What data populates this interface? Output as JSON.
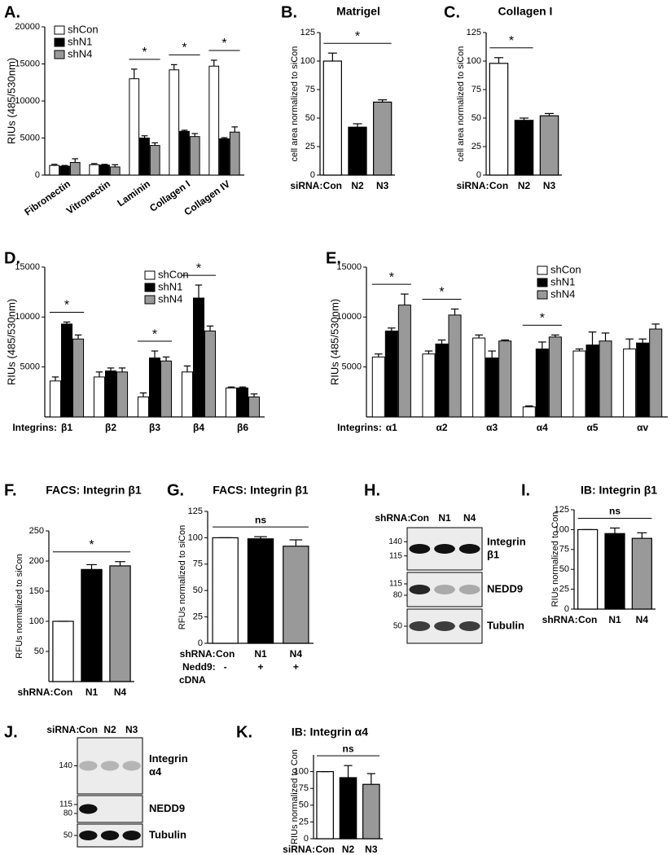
{
  "chart_data": [
    {
      "type": "bar",
      "panel": "A.",
      "ylabel": "RIUs (485/530nm)",
      "categories": [
        "Fibronectin",
        "Vitronectin",
        "Laminin",
        "Collagen I",
        "Collagen IV"
      ],
      "series": [
        {
          "name": "shCon",
          "color": "#ffffff",
          "values": [
            1300,
            1400,
            13000,
            14200,
            14700
          ],
          "errors": [
            150,
            150,
            1300,
            700,
            800
          ]
        },
        {
          "name": "shN1",
          "color": "#000000",
          "values": [
            1200,
            1350,
            5000,
            5900,
            4900
          ],
          "errors": [
            100,
            100,
            300,
            150,
            150
          ]
        },
        {
          "name": "shN4",
          "color": "#999999",
          "values": [
            1700,
            1100,
            4000,
            5200,
            5800
          ],
          "errors": [
            500,
            300,
            350,
            400,
            700
          ]
        }
      ],
      "ylim": [
        0,
        20000
      ],
      "yticks": [
        0,
        5000,
        10000,
        15000,
        20000
      ],
      "legend": "top-left",
      "annotations": [
        {
          "text": "*",
          "from": 2,
          "to": 2
        },
        {
          "text": "*",
          "from": 3,
          "to": 3
        },
        {
          "text": "*",
          "from": 4,
          "to": 4
        }
      ]
    },
    {
      "type": "bar",
      "panel": "B.",
      "title": "Matrigel",
      "ylabel": "cell area normalized to siCon",
      "x_prefix": "siRNA:",
      "categories": [
        "Con",
        "N2",
        "N3"
      ],
      "values": [
        100,
        42,
        64
      ],
      "errors": [
        7,
        3,
        2
      ],
      "colors": [
        "#ffffff",
        "#000000",
        "#999999"
      ],
      "ylim": [
        0,
        125
      ],
      "yticks": [
        0,
        25,
        50,
        75,
        100,
        125
      ],
      "annotations": [
        {
          "text": "*",
          "from": 0,
          "to": 2
        }
      ]
    },
    {
      "type": "bar",
      "panel": "C.",
      "title": "Collagen I",
      "ylabel": "cell area normalized to siCon",
      "x_prefix": "siRNA:",
      "categories": [
        "Con",
        "N2",
        "N3"
      ],
      "values": [
        98,
        48,
        52
      ],
      "errors": [
        5,
        2,
        2
      ],
      "colors": [
        "#ffffff",
        "#000000",
        "#999999"
      ],
      "ylim": [
        0,
        125
      ],
      "yticks": [
        0,
        25,
        50,
        75,
        100,
        125
      ],
      "annotations": [
        {
          "text": "*",
          "from": 0,
          "to": 1
        }
      ]
    },
    {
      "type": "bar",
      "panel": "D.",
      "ylabel": "RIUs (485/530nm)",
      "x_prefix": "Integrins:",
      "categories": [
        "β1",
        "β2",
        "β3",
        "β4",
        "β6"
      ],
      "series": [
        {
          "name": "shCon",
          "color": "#ffffff",
          "values": [
            3600,
            4000,
            2000,
            4500,
            2900
          ],
          "errors": [
            400,
            500,
            400,
            600,
            100
          ]
        },
        {
          "name": "shN1",
          "color": "#000000",
          "values": [
            9300,
            4600,
            5900,
            11900,
            2900
          ],
          "errors": [
            200,
            300,
            700,
            1300,
            100
          ]
        },
        {
          "name": "shN4",
          "color": "#999999",
          "values": [
            7800,
            4500,
            5600,
            8600,
            2000
          ],
          "errors": [
            400,
            400,
            400,
            500,
            300
          ]
        }
      ],
      "ylim": [
        0,
        15000
      ],
      "yticks": [
        5000,
        10000,
        15000
      ],
      "legend": "top-center",
      "annotations": [
        {
          "text": "*",
          "from": 0,
          "to": 0
        },
        {
          "text": "*",
          "from": 2,
          "to": 2
        },
        {
          "text": "*",
          "from": 3,
          "to": 3
        }
      ]
    },
    {
      "type": "bar",
      "panel": "E.",
      "ylabel": "RIUs (485/530nm)",
      "x_prefix": "Integrins:",
      "categories": [
        "α1",
        "α2",
        "α3",
        "α4",
        "α5",
        "αv"
      ],
      "series": [
        {
          "name": "shCon",
          "color": "#ffffff",
          "values": [
            6000,
            6300,
            7900,
            1000,
            6600,
            6800
          ],
          "errors": [
            300,
            300,
            300,
            100,
            200,
            1000
          ]
        },
        {
          "name": "shN1",
          "color": "#000000",
          "values": [
            8600,
            7300,
            5900,
            6800,
            7200,
            7400
          ],
          "errors": [
            300,
            400,
            700,
            700,
            1300,
            400
          ]
        },
        {
          "name": "shN4",
          "color": "#999999",
          "values": [
            11200,
            10200,
            7600,
            8000,
            7600,
            8800
          ],
          "errors": [
            1100,
            600,
            100,
            200,
            800,
            500
          ]
        }
      ],
      "ylim": [
        0,
        15000
      ],
      "yticks": [
        5000,
        10000,
        15000
      ],
      "legend": "top-right",
      "annotations": [
        {
          "text": "*",
          "from": 0,
          "to": 0
        },
        {
          "text": "*",
          "from": 1,
          "to": 1
        },
        {
          "text": "*",
          "from": 3,
          "to": 3
        }
      ]
    },
    {
      "type": "bar",
      "panel": "F.",
      "title": "FACS: Integrin β1",
      "ylabel": "RFUs normalized to siCon",
      "x_prefix": "shRNA:",
      "categories": [
        "Con",
        "N1",
        "N4"
      ],
      "values": [
        100,
        186,
        192
      ],
      "errors": [
        0,
        8,
        7
      ],
      "colors": [
        "#ffffff",
        "#000000",
        "#999999"
      ],
      "ylim": [
        0,
        250
      ],
      "yticks": [
        50,
        100,
        150,
        200,
        250
      ],
      "annotations": [
        {
          "text": "*",
          "from": 0,
          "to": 2
        }
      ]
    },
    {
      "type": "bar",
      "panel": "G.",
      "title": "FACS: Integrin β1",
      "ylabel": "RFUs normalized to siCon",
      "x_prefix": "shRNA:",
      "categories": [
        "Con",
        "N1",
        "N4"
      ],
      "values": [
        100,
        99,
        92
      ],
      "errors": [
        0,
        2,
        6
      ],
      "colors": [
        "#ffffff",
        "#000000",
        "#999999"
      ],
      "ylim": [
        0,
        125
      ],
      "yticks": [
        0,
        25,
        50,
        75,
        100,
        125
      ],
      "extra_rows": [
        {
          "label": "Nedd9:",
          "texts": [
            "-",
            "+",
            "+"
          ]
        }
      ],
      "x_footnote": "cDNA",
      "annotations": [
        {
          "text": "ns",
          "from": 0,
          "to": 2
        }
      ]
    },
    {
      "type": "bar",
      "panel": "I.",
      "title": "IB: Integrin β1",
      "ylabel": "RIUs normalized to Con",
      "x_prefix": "shRNA:",
      "categories": [
        "Con",
        "N1",
        "N4"
      ],
      "values": [
        100,
        95,
        89
      ],
      "errors": [
        0,
        7,
        7
      ],
      "colors": [
        "#ffffff",
        "#000000",
        "#999999"
      ],
      "ylim": [
        0,
        125
      ],
      "yticks": [
        0,
        25,
        50,
        75,
        100,
        125
      ],
      "annotations": [
        {
          "text": "ns",
          "from": 0,
          "to": 2
        }
      ]
    },
    {
      "type": "bar",
      "panel": "K.",
      "title": "IB: Integrin α4",
      "ylabel": "RIUs normalized to Con",
      "x_prefix": "siRNA:",
      "categories": [
        "Con",
        "N2",
        "N3"
      ],
      "values": [
        100,
        91,
        81
      ],
      "errors": [
        0,
        18,
        16
      ],
      "colors": [
        "#ffffff",
        "#000000",
        "#999999"
      ],
      "ylim": [
        0,
        125
      ],
      "yticks": [
        0,
        25,
        50,
        75,
        100
      ],
      "annotations": [
        {
          "text": "ns",
          "from": 0,
          "to": 2
        }
      ]
    }
  ],
  "blots": [
    {
      "panel": "H.",
      "prefix": "shRNA:",
      "lanes": [
        "Con",
        "N1",
        "N4"
      ],
      "bands": [
        {
          "labels": [
            "Integrin",
            "β1"
          ],
          "markers": [
            "140",
            "115"
          ]
        },
        {
          "labels": [
            "NEDD9"
          ],
          "markers": [
            "115",
            "80"
          ]
        },
        {
          "labels": [
            "Tubulin"
          ],
          "markers": [
            "50"
          ]
        }
      ]
    },
    {
      "panel": "J.",
      "prefix": "siRNA:",
      "lanes": [
        "Con",
        "N2",
        "N3"
      ],
      "bands": [
        {
          "labels": [
            "Integrin",
            "α4"
          ],
          "markers": [
            "140"
          ]
        },
        {
          "labels": [
            "NEDD9"
          ],
          "markers": [
            "115",
            "80"
          ]
        },
        {
          "labels": [
            "Tubulin"
          ],
          "markers": [
            "50"
          ]
        }
      ]
    }
  ]
}
